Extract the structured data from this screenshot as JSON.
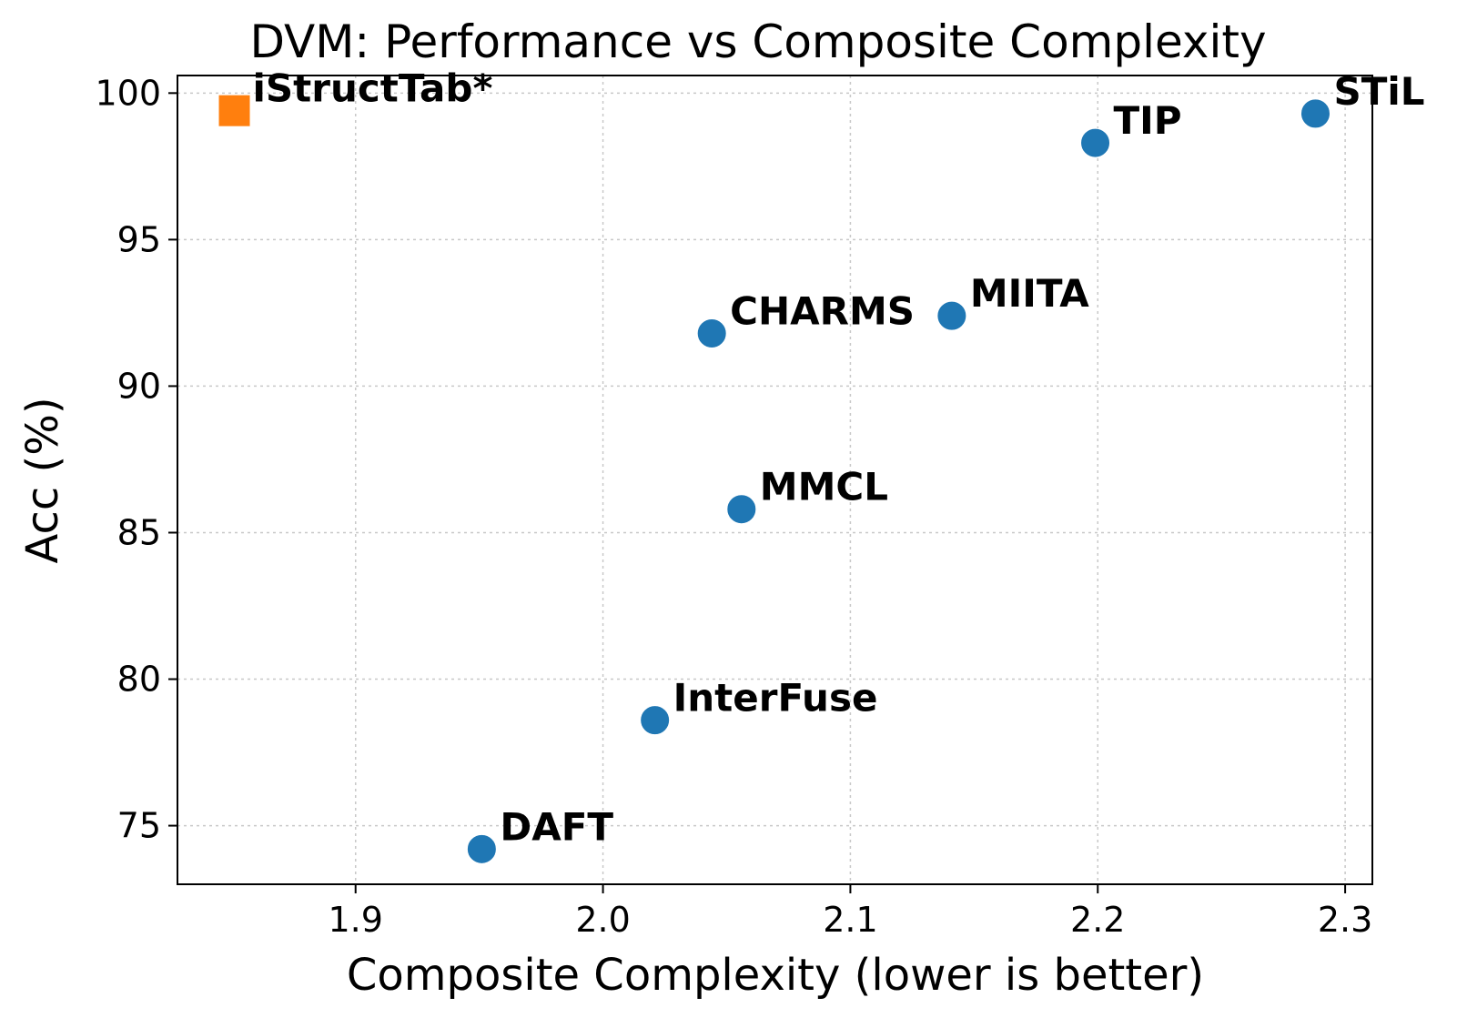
{
  "chart_data": {
    "type": "scatter",
    "title": "DVM: Performance vs Composite Complexity",
    "xlabel": "Composite Complexity (lower is better)",
    "ylabel": "Acc (%)",
    "xlim": [
      1.828,
      2.311
    ],
    "ylim": [
      73.0,
      100.6
    ],
    "xticks": [
      1.9,
      2.0,
      2.1,
      2.2,
      2.3
    ],
    "xtick_labels": [
      "1.9",
      "2.0",
      "2.1",
      "2.2",
      "2.3"
    ],
    "yticks": [
      75,
      80,
      85,
      90,
      95,
      100
    ],
    "ytick_labels": [
      "75",
      "80",
      "85",
      "90",
      "95",
      "100"
    ],
    "grid": true,
    "colors": {
      "baseline": "#1f77b4",
      "highlight": "#ff7f0e"
    },
    "points": [
      {
        "label": "iStructTab*",
        "x": 1.851,
        "y": 99.4,
        "marker": "square",
        "color": "#ff7f0e"
      },
      {
        "label": "TIP",
        "x": 2.199,
        "y": 98.3,
        "marker": "circle",
        "color": "#1f77b4"
      },
      {
        "label": "STiL",
        "x": 2.288,
        "y": 99.3,
        "marker": "circle",
        "color": "#1f77b4"
      },
      {
        "label": "CHARMS",
        "x": 2.044,
        "y": 91.8,
        "marker": "circle",
        "color": "#1f77b4"
      },
      {
        "label": "MIITA",
        "x": 2.141,
        "y": 92.4,
        "marker": "circle",
        "color": "#1f77b4"
      },
      {
        "label": "MMCL",
        "x": 2.056,
        "y": 85.8,
        "marker": "circle",
        "color": "#1f77b4"
      },
      {
        "label": "InterFuse",
        "x": 2.021,
        "y": 78.6,
        "marker": "circle",
        "color": "#1f77b4"
      },
      {
        "label": "DAFT",
        "x": 1.951,
        "y": 74.2,
        "marker": "circle",
        "color": "#1f77b4"
      }
    ]
  }
}
